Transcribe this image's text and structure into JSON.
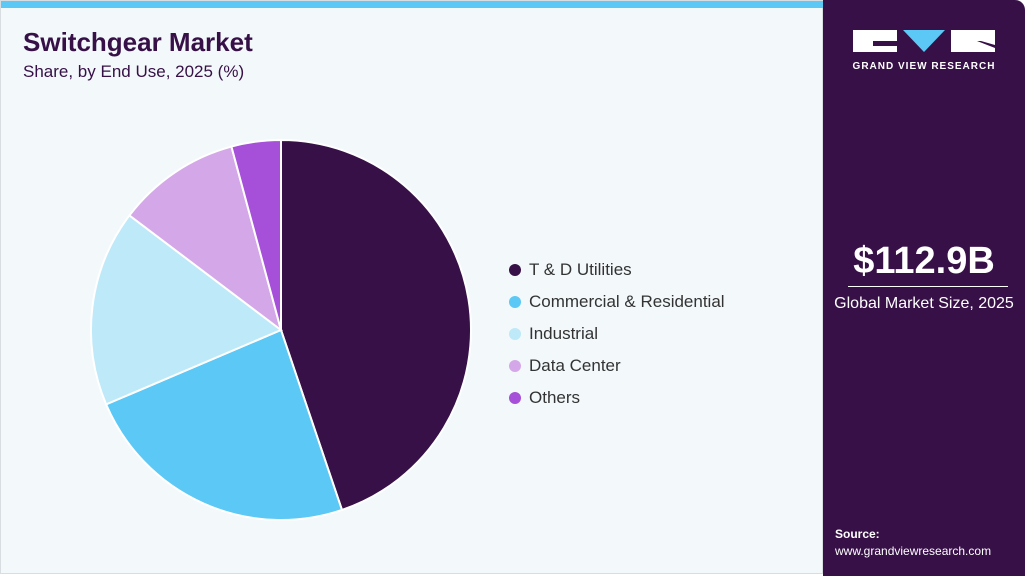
{
  "title": "Switchgear Market",
  "subtitle": "Share, by End Use, 2025 (%)",
  "chart_data": {
    "type": "pie",
    "categories": [
      "T & D Utilities",
      "Commercial & Residential",
      "Industrial",
      "Data Center",
      "Others"
    ],
    "values": [
      44.8,
      23.8,
      16.7,
      10.5,
      4.2
    ],
    "colors": [
      "#361046",
      "#5bc8f5",
      "#bde9f9",
      "#d4a8e8",
      "#a64fd8"
    ],
    "start_angle": "12 o'clock",
    "direction": "clockwise",
    "legend": "right"
  },
  "sidebar": {
    "brand": "GRAND VIEW RESEARCH",
    "market_size": "$112.9B",
    "market_size_label": "Global Market Size, 2025",
    "source_label": "Source:",
    "source_url": "www.grandviewresearch.com"
  }
}
